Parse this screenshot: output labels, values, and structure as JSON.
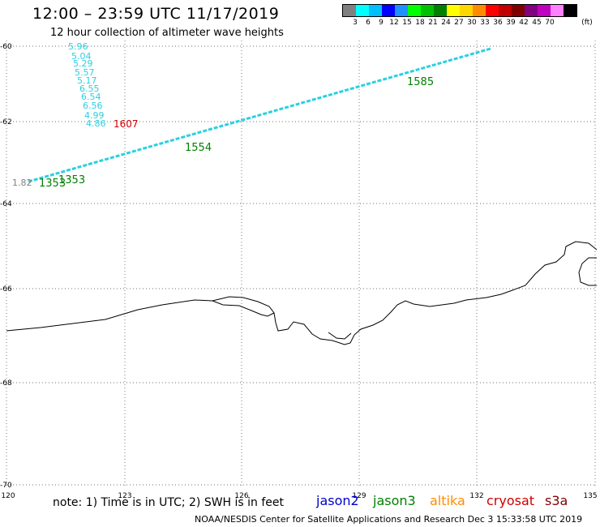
{
  "header": {
    "title": "12:00 – 23:59 UTC 11/17/2019",
    "subtitle": "12 hour collection of altimeter wave heights"
  },
  "legend": {
    "unit": "(ft)",
    "colors": [
      "#808080",
      "#00ffff",
      "#00bfff",
      "#0000ff",
      "#1e90ff",
      "#00ff00",
      "#00c000",
      "#008000",
      "#ffff00",
      "#ffd700",
      "#ff8c00",
      "#ff0000",
      "#c00000",
      "#800000",
      "#800080",
      "#c000c0",
      "#ff80ff",
      "#000000"
    ],
    "labels": [
      "3",
      "6",
      "9",
      "12",
      "15",
      "18",
      "21",
      "24",
      "27",
      "30",
      "33",
      "36",
      "39",
      "42",
      "45",
      "70"
    ]
  },
  "map": {
    "lon_range": [
      120,
      135
    ],
    "lat_range": [
      -70,
      -60
    ],
    "lon_ticks": [
      "120",
      "123",
      "126",
      "129",
      "132",
      "135"
    ],
    "lat_ticks": [
      "-60",
      "-62",
      "-64",
      "-66",
      "-68",
      "-70"
    ]
  },
  "tracks": {
    "column_values": [
      "5.96",
      "5.04",
      "5.29",
      "5.57",
      "5.17",
      "6.55",
      "6.54",
      "6.56",
      "4.99",
      "4.86"
    ],
    "cryosat_time": "1607",
    "jason3_times": [
      "1353",
      "1353",
      "1554",
      "1585"
    ],
    "grey_value": "1.82"
  },
  "footer": {
    "note": "note: 1) Time is in UTC; 2) SWH is in feet",
    "satellites": [
      {
        "name": "jason2",
        "color": "#0000cc"
      },
      {
        "name": "jason3",
        "color": "#008000"
      },
      {
        "name": "altika",
        "color": "#ff8c00"
      },
      {
        "name": "cryosat",
        "color": "#cc0000"
      },
      {
        "name": "s3a",
        "color": "#800000"
      }
    ],
    "credit": "NOAA/NESDIS Center for Satellite Applications and Research    Dec  3 15:33:58 UTC 2019"
  }
}
